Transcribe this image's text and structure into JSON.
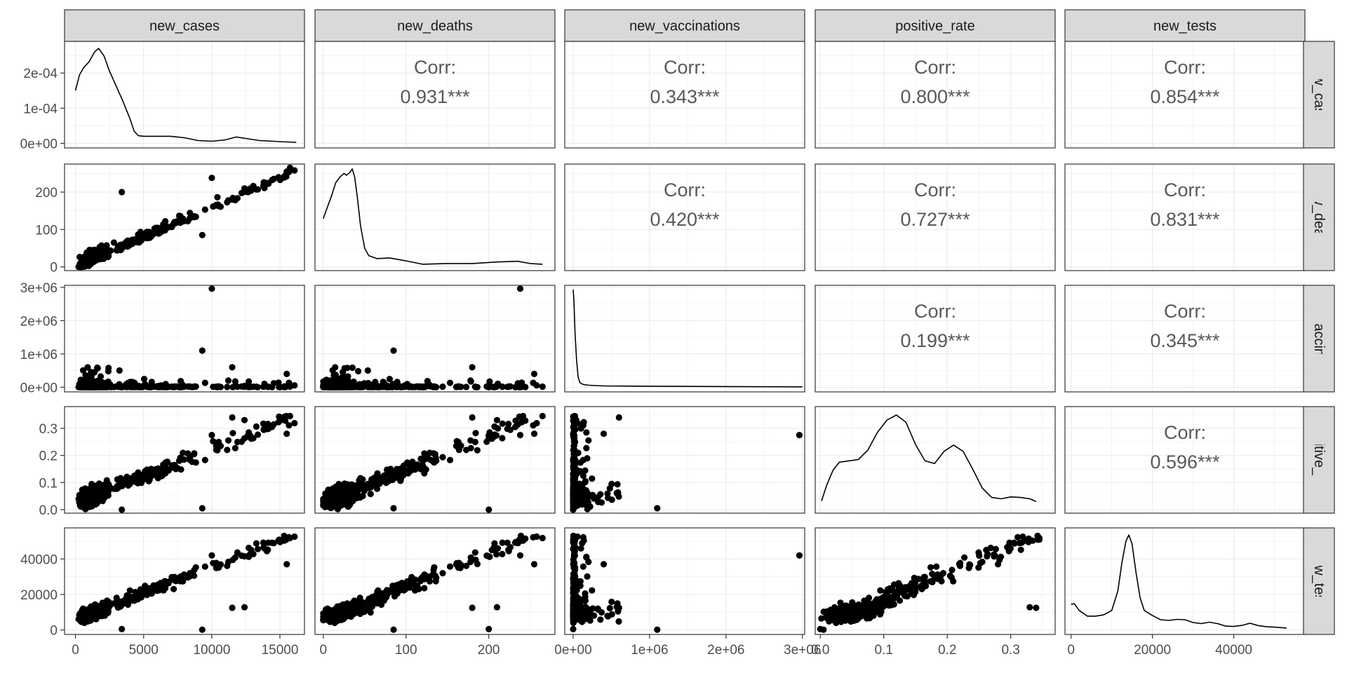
{
  "chart_data": {
    "type": "scatter",
    "variables": [
      "new_cases",
      "new_deaths",
      "new_vaccinations",
      "positive_rate",
      "new_tests"
    ],
    "strip_labels": {
      "top": [
        "new_cases",
        "new_deaths",
        "new_vaccinations",
        "positive_rate",
        "new_tests"
      ],
      "right": [
        "new_cases",
        "new_deaths",
        "ew_vaccination",
        "positive_rate",
        "new_tests"
      ]
    },
    "corr_label": "Corr:",
    "correlations": [
      {
        "row": "new_cases",
        "col": "new_deaths",
        "value": "0.931***"
      },
      {
        "row": "new_cases",
        "col": "new_vaccinations",
        "value": "0.343***"
      },
      {
        "row": "new_cases",
        "col": "positive_rate",
        "value": "0.800***"
      },
      {
        "row": "new_cases",
        "col": "new_tests",
        "value": "0.854***"
      },
      {
        "row": "new_deaths",
        "col": "new_vaccinations",
        "value": "0.420***"
      },
      {
        "row": "new_deaths",
        "col": "positive_rate",
        "value": "0.727***"
      },
      {
        "row": "new_deaths",
        "col": "new_tests",
        "value": "0.831***"
      },
      {
        "row": "new_vaccinations",
        "col": "positive_rate",
        "value": "0.199***"
      },
      {
        "row": "new_vaccinations",
        "col": "new_tests",
        "value": "0.345***"
      },
      {
        "row": "positive_rate",
        "col": "new_tests",
        "value": "0.596***"
      }
    ],
    "axes": {
      "x": [
        {
          "var": "new_cases",
          "lim": [
            -800,
            16800
          ],
          "ticks": [
            0,
            5000,
            10000,
            15000
          ],
          "labels": [
            "0",
            "5000",
            "10000",
            "15000"
          ]
        },
        {
          "var": "new_deaths",
          "lim": [
            -10,
            280
          ],
          "ticks": [
            0,
            100,
            200
          ],
          "labels": [
            "0",
            "100",
            "200"
          ]
        },
        {
          "var": "new_vaccinations",
          "lim": [
            -110000,
            3030000
          ],
          "ticks": [
            0,
            1000000,
            2000000,
            3000000
          ],
          "labels": [
            "0e+00",
            "1e+06",
            "2e+06",
            "3e+06"
          ]
        },
        {
          "var": "positive_rate",
          "lim": [
            -0.008,
            0.37
          ],
          "ticks": [
            0.0,
            0.1,
            0.2,
            0.3
          ],
          "labels": [
            "0.0",
            "0.1",
            "0.2",
            "0.3"
          ]
        },
        {
          "var": "new_tests",
          "lim": [
            -1500,
            57500
          ],
          "ticks": [
            0,
            20000,
            40000
          ],
          "labels": [
            "0",
            "20000",
            "40000"
          ]
        }
      ],
      "y": [
        {
          "var": "new_cases",
          "lim": [
            -1.3e-05,
            0.00029
          ],
          "ticks": [
            0,
            0.0001,
            0.0002
          ],
          "labels": [
            "0e+00",
            "1e-04",
            "2e-04"
          ]
        },
        {
          "var": "new_deaths",
          "lim": [
            -10,
            275
          ],
          "ticks": [
            0,
            100,
            200
          ],
          "labels": [
            "0",
            "100",
            "200"
          ]
        },
        {
          "var": "new_vaccinations",
          "lim": [
            -140000,
            3060000
          ],
          "ticks": [
            0,
            1000000,
            2000000,
            3000000
          ],
          "labels": [
            "0e+00",
            "1e+06",
            "2e+06",
            "3e+06"
          ]
        },
        {
          "var": "positive_rate",
          "lim": [
            -0.013,
            0.38
          ],
          "ticks": [
            0.0,
            0.1,
            0.2,
            0.3
          ],
          "labels": [
            "0.0",
            "0.1",
            "0.2",
            "0.3"
          ]
        },
        {
          "var": "new_tests",
          "lim": [
            -2500,
            57500
          ],
          "ticks": [
            0,
            20000,
            40000
          ],
          "labels": [
            "0",
            "20000",
            "40000"
          ]
        }
      ]
    },
    "densities": [
      {
        "var": "new_cases",
        "x": [
          0,
          300,
          600,
          1000,
          1400,
          1700,
          2100,
          2500,
          3000,
          3500,
          4000,
          4300,
          4600,
          5000,
          6000,
          7000,
          8000,
          9000,
          10000,
          11000,
          11800,
          12500,
          13500,
          14500,
          15500,
          16200
        ],
        "y": [
          0.00015,
          0.000195,
          0.000215,
          0.000232,
          0.00026,
          0.00027,
          0.000248,
          0.000205,
          0.000162,
          0.000118,
          7e-05,
          3.5e-05,
          2.2e-05,
          2e-05,
          2e-05,
          2e-05,
          1.6e-05,
          8e-06,
          6e-06,
          1e-05,
          1.8e-05,
          1.4e-05,
          8e-06,
          6e-06,
          4e-06,
          3e-06
        ]
      },
      {
        "var": "new_deaths",
        "x": [
          0,
          5,
          10,
          15,
          20,
          25,
          28,
          32,
          35,
          38,
          41,
          45,
          50,
          55,
          65,
          80,
          100,
          120,
          150,
          180,
          210,
          235,
          250,
          265
        ],
        "y": [
          129,
          160,
          190,
          225,
          240,
          250,
          245,
          252,
          262,
          240,
          190,
          110,
          50,
          30,
          22,
          24,
          16,
          7,
          9,
          9,
          13,
          15,
          9,
          7
        ]
      },
      {
        "var": "new_vaccinations",
        "x": [
          0,
          10000,
          25000,
          45000,
          65000,
          90000,
          130000,
          200000,
          400000,
          1000000,
          2000000,
          3000000
        ],
        "y": [
          2930000,
          2600000,
          1600000,
          800000,
          300000,
          130000,
          85000,
          60000,
          40000,
          30000,
          20000,
          12000
        ]
      },
      {
        "var": "positive_rate",
        "x": [
          0.002,
          0.01,
          0.02,
          0.03,
          0.045,
          0.06,
          0.075,
          0.09,
          0.105,
          0.12,
          0.135,
          0.15,
          0.165,
          0.18,
          0.195,
          0.21,
          0.225,
          0.24,
          0.255,
          0.27,
          0.285,
          0.3,
          0.315,
          0.33,
          0.34
        ],
        "y": [
          0.032,
          0.09,
          0.145,
          0.175,
          0.18,
          0.185,
          0.22,
          0.285,
          0.33,
          0.349,
          0.322,
          0.24,
          0.18,
          0.17,
          0.215,
          0.238,
          0.215,
          0.15,
          0.08,
          0.045,
          0.04,
          0.047,
          0.045,
          0.04,
          0.03
        ]
      },
      {
        "var": "new_tests",
        "x": [
          0,
          800,
          2000,
          4000,
          6000,
          8000,
          10000,
          11500,
          12500,
          13500,
          14200,
          15000,
          16000,
          17000,
          18000,
          20000,
          22000,
          24000,
          26000,
          28000,
          30000,
          32000,
          34000,
          36000,
          38000,
          40000,
          42000,
          44000,
          46000,
          48000,
          50000,
          53000
        ],
        "y": [
          14500,
          14800,
          11000,
          7800,
          7800,
          8500,
          11000,
          22000,
          38000,
          50000,
          53500,
          48500,
          32000,
          18000,
          11000,
          8200,
          5800,
          5400,
          6000,
          5800,
          4200,
          3600,
          4400,
          3600,
          2200,
          2000,
          2600,
          3800,
          2500,
          1900,
          1600,
          1100
        ]
      }
    ]
  }
}
